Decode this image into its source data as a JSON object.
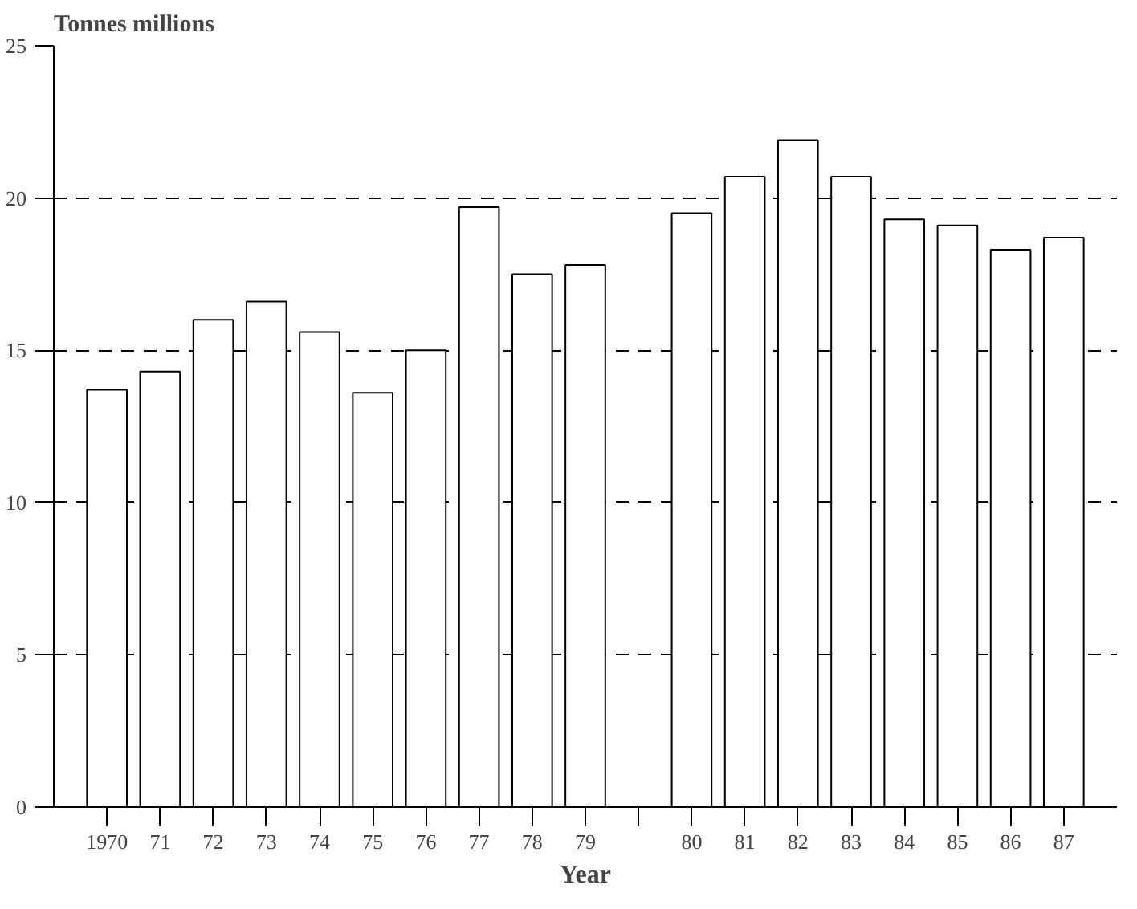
{
  "chart_data": {
    "type": "bar",
    "ylabel": "Tonnes millions",
    "xlabel": "Year",
    "categories": [
      "1970",
      "71",
      "72",
      "73",
      "74",
      "75",
      "76",
      "77",
      "78",
      "79",
      null,
      "80",
      "81",
      "82",
      "83",
      "84",
      "85",
      "86",
      "87"
    ],
    "values": [
      13.7,
      14.3,
      16.0,
      16.6,
      15.6,
      13.6,
      15.0,
      19.7,
      17.5,
      17.8,
      null,
      19.5,
      20.7,
      21.9,
      20.7,
      19.3,
      19.1,
      18.3,
      18.7
    ],
    "color": "#ffffff",
    "ylim": [
      0,
      25
    ],
    "yticks": [
      0,
      5,
      10,
      15,
      20,
      25
    ],
    "grid": "y",
    "line_style": "dashed"
  }
}
